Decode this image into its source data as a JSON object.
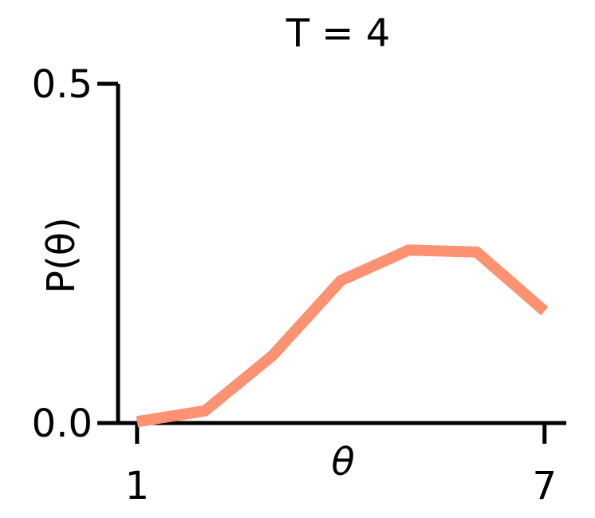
{
  "chart_data": {
    "type": "line",
    "title": "T = 4",
    "xlabel": "θ",
    "ylabel": "P(θ)",
    "x": [
      1,
      2,
      3,
      4,
      5,
      6,
      7
    ],
    "series": [
      {
        "color": "#fc9272",
        "values": [
          0.002,
          0.018,
          0.1,
          0.21,
          0.255,
          0.252,
          0.165
        ]
      }
    ],
    "xlim": [
      0.72,
      7.32
    ],
    "xticks": [
      1,
      7
    ],
    "ylim": [
      0,
      0.5
    ],
    "yticks": [
      {
        "value": 0,
        "label": "0.0"
      },
      0.5
    ]
  }
}
